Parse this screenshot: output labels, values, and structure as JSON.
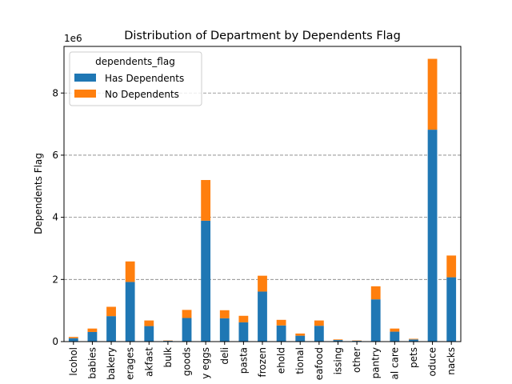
{
  "chart_data": {
    "type": "bar",
    "stacked": true,
    "title": "Distribution of Department by Dependents Flag",
    "xlabel": "",
    "ylabel": "Dependents Flag",
    "y_offset_label": "1e6",
    "ylim": [
      0,
      9.5
    ],
    "yticks": [
      0,
      2,
      4,
      6,
      8
    ],
    "grid": "y-dashed",
    "legend_title": "dependents_flag",
    "legend_position": "top-left",
    "categories": [
      "alcohol",
      "babies",
      "bakery",
      "beverages",
      "breakfast",
      "bulk",
      "canned goods",
      "dairy eggs",
      "deli",
      "dry goods pasta",
      "frozen",
      "household",
      "international",
      "meat seafood",
      "missing",
      "other",
      "pantry",
      "personal care",
      "pets",
      "produce",
      "snacks"
    ],
    "category_labels_visible": [
      "lcohol",
      "babies",
      "bakery",
      "erages",
      "akfast",
      "bulk",
      "goods",
      "y eggs",
      "deli",
      "pasta",
      "frozen",
      "ehold",
      "tional",
      "eafood",
      "issing",
      "other",
      "pantry",
      "al care",
      "pets",
      "oduce",
      "nacks"
    ],
    "series": [
      {
        "name": "Has Dependents",
        "color": "#1f77b4",
        "values": [
          0.11,
          0.31,
          0.82,
          1.92,
          0.5,
          0.025,
          0.76,
          3.89,
          0.75,
          0.62,
          1.61,
          0.52,
          0.19,
          0.51,
          0.05,
          0.025,
          1.36,
          0.32,
          0.07,
          6.82,
          2.07
        ]
      },
      {
        "name": "No Dependents",
        "color": "#ff7f0e",
        "values": [
          0.04,
          0.11,
          0.3,
          0.66,
          0.18,
          0.01,
          0.26,
          1.31,
          0.26,
          0.21,
          0.51,
          0.18,
          0.07,
          0.17,
          0.02,
          0.01,
          0.42,
          0.1,
          0.02,
          2.28,
          0.7
        ]
      }
    ]
  }
}
